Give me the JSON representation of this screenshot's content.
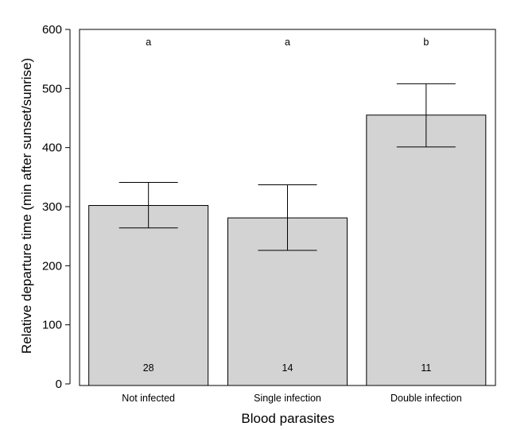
{
  "chart_data": {
    "type": "bar",
    "categories": [
      "Not infected",
      "Single infection",
      "Double infection"
    ],
    "values": [
      302,
      281,
      455
    ],
    "error_low": [
      264,
      226,
      401
    ],
    "error_high": [
      341,
      337,
      508
    ],
    "group_letters": [
      "a",
      "a",
      "b"
    ],
    "sample_sizes": [
      "28",
      "14",
      "11"
    ],
    "xlabel": "Blood parasites",
    "ylabel": "Relative departure time (min after sunset/sunrise)",
    "ylim": [
      0,
      600
    ],
    "yticks": [
      0,
      100,
      200,
      300,
      400,
      500,
      600
    ],
    "grid": false,
    "bar_color": "#d3d3d3",
    "line_color": "#000000"
  }
}
